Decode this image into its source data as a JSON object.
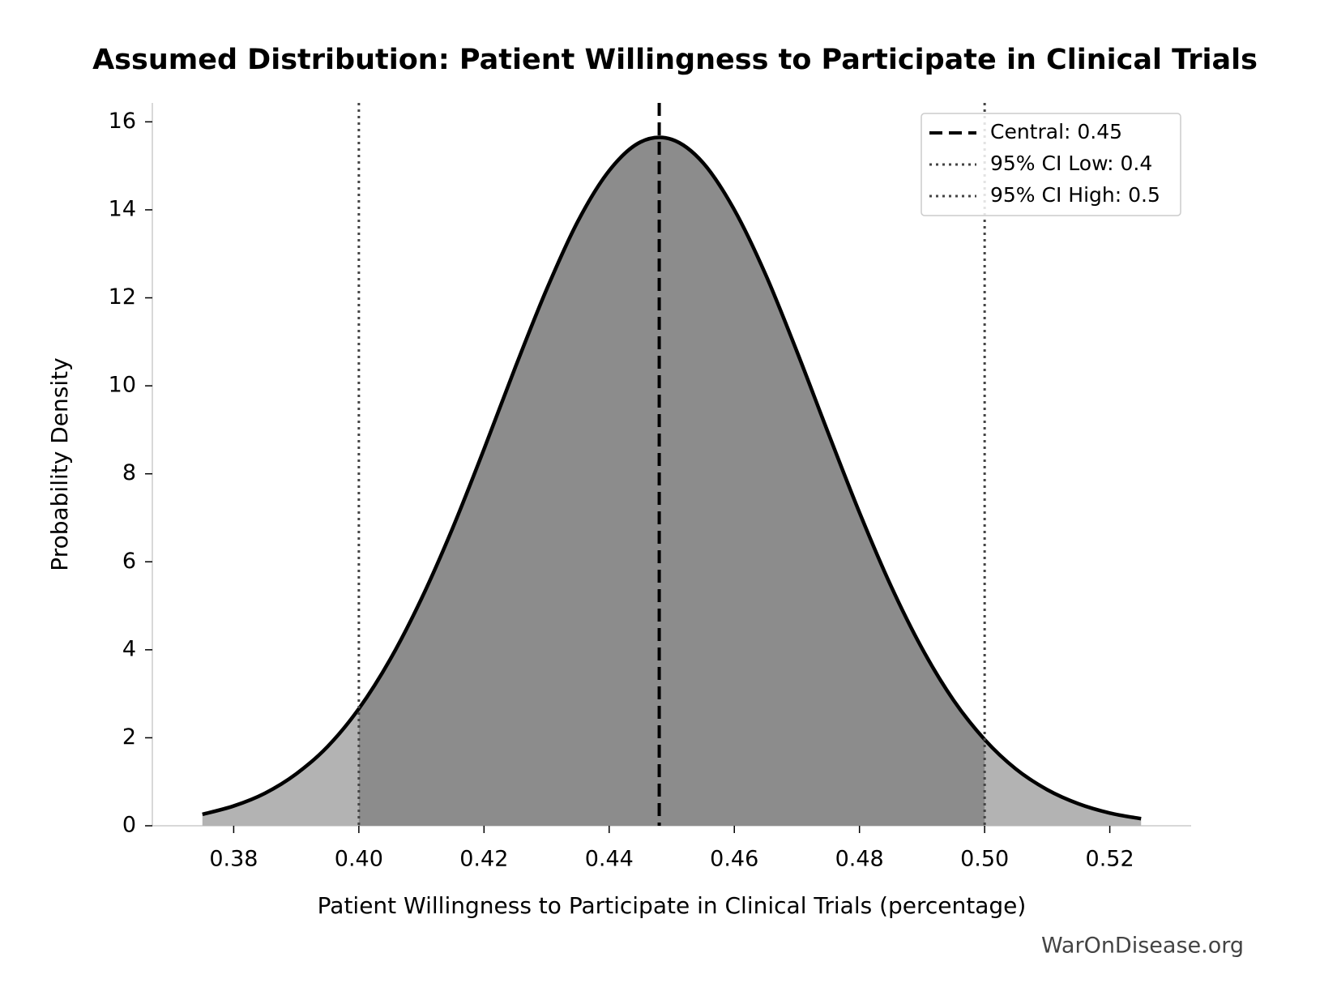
{
  "chart_data": {
    "type": "density",
    "title": "Assumed Distribution: Patient Willingness to Participate in Clinical Trials",
    "x_label": "Patient Willingness to Participate in Clinical Trials (percentage)",
    "y_label": "Probability Density",
    "watermark": "WarOnDisease.org",
    "x": [
      0.375,
      0.38,
      0.385,
      0.39,
      0.395,
      0.4,
      0.405,
      0.41,
      0.415,
      0.42,
      0.425,
      0.43,
      0.435,
      0.44,
      0.445,
      0.45,
      0.455,
      0.46,
      0.465,
      0.47,
      0.475,
      0.48,
      0.485,
      0.49,
      0.495,
      0.5,
      0.505,
      0.51,
      0.515,
      0.52,
      0.525
    ],
    "series": [
      {
        "color": "#000000",
        "values": [
          0.26,
          0.45,
          0.74,
          1.18,
          1.8,
          2.66,
          3.78,
          5.16,
          6.77,
          8.56,
          10.42,
          12.19,
          13.74,
          14.89,
          15.54,
          15.6,
          15.07,
          14.0,
          12.53,
          10.78,
          8.93,
          7.12,
          5.46,
          4.03,
          2.86,
          1.96,
          1.29,
          0.82,
          0.5,
          0.29,
          0.16
        ]
      }
    ],
    "fill_inside": "#8c8c8c",
    "fill_outside": "#b3b3b3",
    "vlines": [
      {
        "name": "Central: 0.45",
        "value": 0.448,
        "style": "dashed",
        "color": "#000000"
      },
      {
        "name": "95% CI Low: 0.4",
        "value": 0.4,
        "style": "dotted",
        "color": "#444444"
      },
      {
        "name": "95% CI High: 0.5",
        "value": 0.5,
        "style": "dotted",
        "color": "#444444"
      }
    ],
    "xlim": [
      0.367,
      0.533
    ],
    "ylim": [
      0,
      16.43
    ],
    "xticks": [
      0.38,
      {
        "value": 0.4,
        "label": "0.40"
      },
      0.42,
      0.44,
      0.46,
      0.48,
      {
        "value": 0.5,
        "label": "0.50"
      },
      0.52
    ],
    "yticks": [
      0,
      2,
      4,
      6,
      8,
      10,
      12,
      14,
      16
    ],
    "legend": "upper right"
  }
}
